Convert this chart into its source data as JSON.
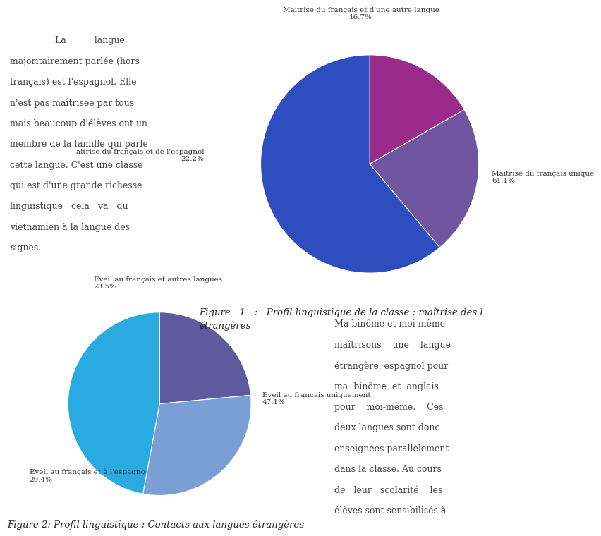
{
  "chart1": {
    "values": [
      16.7,
      22.2,
      61.1
    ],
    "colors": [
      "#9B2B8A",
      "#7055A0",
      "#2E4EC0"
    ],
    "startangle": 90,
    "label0_text": "Maitrise du français et d'une autre langue\n16.7%",
    "label1_text": "aitrise du français et de l'espagnol\n22.2%",
    "label2_text": "Maitrise du français unique\n61.1%"
  },
  "chart2": {
    "values": [
      23.5,
      29.4,
      47.1
    ],
    "colors": [
      "#5D5A9E",
      "#7B9FD4",
      "#29ABE2"
    ],
    "startangle": 90,
    "label0_text": "Eveil au français et autres langues\n23.5%",
    "label1_text": "Eveil au français et à l'espagno\n29.4%",
    "label2_text": "Eveil au français uniquement\n47.1%"
  },
  "background_color": "#ffffff",
  "text_color": "#333333",
  "label_fontsize": 7.5,
  "caption_fontsize": 9.5,
  "left_text_color": "#444444",
  "left_text": [
    "                La          langue",
    "majoritairement parlée (hors",
    "français) est l'espagnol. Elle",
    "n'est pas maîtrisée par tous",
    "mais beaucoup d'élèves ont un",
    "membre de la famille qui parle",
    "cette langue. C'est une classe",
    "qui est d'une grande richesse",
    "linguistique   cela   va   du",
    "vietnamien à la langue des",
    "signes."
  ],
  "bottom_right_text": [
    "Ma binôme et moi-même",
    "maîtrisons    une    langue",
    "étrangère, espagnol pour",
    "ma  binôme  et  anglais",
    "pour    moi-même.    Ces",
    "deux langues sont donc",
    "enseignées parallèlement",
    "dans la classe. Au cours",
    "de   leur   scolarité,   les",
    "élèves sont sensibilisés à"
  ],
  "caption1_line1": "Figure   1   :   Profil linguistique de la classe : maîtrise des l",
  "caption1_line2": "étrangères",
  "caption2": "Figure 2: Profil linguistique : Contacts aux langues étrangères"
}
